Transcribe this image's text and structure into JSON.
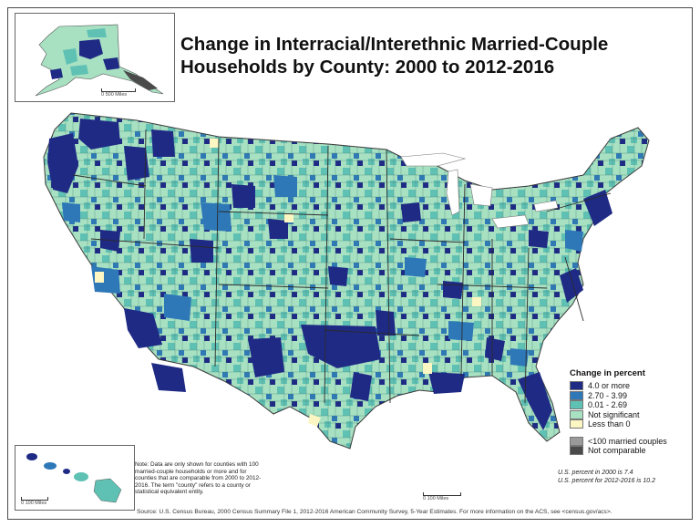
{
  "title_line1": "Change in Interracial/Interethnic Married-Couple",
  "title_line2": "Households by County: 2000 to 2012-2016",
  "legend": {
    "title": "Change in percent",
    "items": [
      {
        "label": "4.0 or more",
        "color": "#1f2a85"
      },
      {
        "label": "2.70 - 3.99",
        "color": "#2e78b8"
      },
      {
        "label": "0.01 - 2.69",
        "color": "#5fc1b3"
      },
      {
        "label": "Not significant",
        "color": "#a8e0c2"
      },
      {
        "label": "Less than 0",
        "color": "#fbf6c2"
      }
    ],
    "extra": [
      {
        "label": "<100 married couples",
        "color": "#9a9a9a"
      },
      {
        "label": "Not comparable",
        "color": "#4a4a4a"
      }
    ]
  },
  "note": "Note: Data are only shown for counties with 100 married-couple households or more and for counties that are comparable from 2000 to 2012-2016. The term \"county\" refers to a county or statistical equivalent entity.",
  "us_percent_2000": "U.S. percent in 2000 is 7.4",
  "us_percent_2016": "U.S. percent for 2012-2016 is 10.2",
  "source": "Source: U.S. Census Bureau, 2000 Census Summary File 1, 2012-2016 American Community Survey, 5-Year Estimates. For more information on the ACS, see <census.gov/acs>.",
  "scale_alaska": "0          500 Miles",
  "scale_hawaii": "0     100 Miles",
  "scale_main": "0      100 Miles"
}
